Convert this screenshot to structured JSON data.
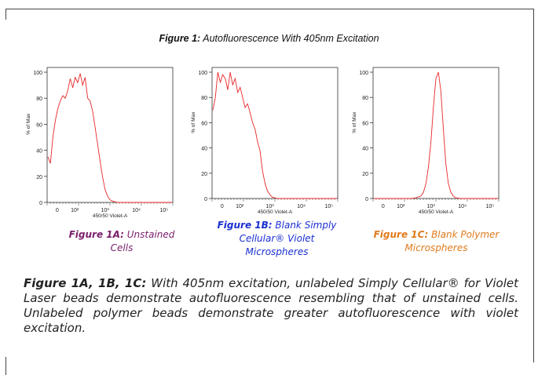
{
  "figure_title": {
    "label": "Figure 1:",
    "text": " Autofluorescence With 405nm Excitation"
  },
  "chart_data": [
    {
      "type": "area",
      "id": "1A",
      "xlabel": "450/50 Violet-A",
      "ylabel": "% of Max",
      "yticks": [
        "0",
        "20",
        "40",
        "60",
        "80",
        "100"
      ],
      "xticks": [
        "0",
        "10²",
        "10³",
        "10⁴",
        "10⁵"
      ],
      "ylim": [
        0,
        100
      ],
      "color": "#e8262a",
      "x": [
        0.0,
        0.02,
        0.04,
        0.06,
        0.08,
        0.1,
        0.12,
        0.14,
        0.16,
        0.18,
        0.2,
        0.22,
        0.24,
        0.26,
        0.28,
        0.3,
        0.32,
        0.34,
        0.36,
        0.38,
        0.4,
        0.42,
        0.44,
        0.46,
        0.48,
        0.5,
        0.52,
        0.54,
        0.56,
        0.6,
        0.7,
        0.8,
        0.9,
        1.0
      ],
      "values": [
        35,
        30,
        50,
        63,
        72,
        78,
        82,
        80,
        86,
        95,
        88,
        96,
        92,
        99,
        90,
        96,
        80,
        78,
        70,
        58,
        45,
        32,
        20,
        10,
        5,
        2,
        1,
        0.5,
        0,
        0,
        0,
        0,
        0,
        0
      ],
      "caption_label": "Figure 1A:",
      "caption_text": " Unstained Cells"
    },
    {
      "type": "area",
      "id": "1B",
      "xlabel": "450/50 Violet-A",
      "ylabel": "% of Max",
      "yticks": [
        "0",
        "20",
        "40",
        "60",
        "80",
        "100"
      ],
      "xticks": [
        "0",
        "10²",
        "10³",
        "10⁴",
        "10⁵"
      ],
      "ylim": [
        0,
        100
      ],
      "color": "#e8262a",
      "x": [
        0.0,
        0.02,
        0.04,
        0.06,
        0.08,
        0.1,
        0.12,
        0.14,
        0.16,
        0.18,
        0.2,
        0.22,
        0.24,
        0.26,
        0.28,
        0.3,
        0.32,
        0.34,
        0.36,
        0.38,
        0.4,
        0.42,
        0.44,
        0.46,
        0.48,
        0.5,
        0.52,
        0.54,
        0.56,
        0.6,
        0.7,
        0.8,
        0.9,
        1.0
      ],
      "values": [
        70,
        80,
        100,
        92,
        98,
        95,
        86,
        100,
        90,
        95,
        84,
        88,
        80,
        72,
        75,
        68,
        60,
        55,
        45,
        38,
        22,
        12,
        6,
        3,
        1,
        0.5,
        0,
        0,
        0,
        0,
        0,
        0,
        0,
        0
      ],
      "caption_label": "Figure 1B:",
      "caption_text": " Blank Simply Cellular® Violet Microspheres"
    },
    {
      "type": "area",
      "id": "1C",
      "xlabel": "450/50 Violet-A",
      "ylabel": "% of Max",
      "yticks": [
        "0",
        "20",
        "40",
        "60",
        "80",
        "100"
      ],
      "xticks": [
        "0",
        "10²",
        "10³",
        "10⁴",
        "10⁵"
      ],
      "ylim": [
        0,
        100
      ],
      "color": "#e8262a",
      "x": [
        0.0,
        0.2,
        0.3,
        0.34,
        0.38,
        0.4,
        0.42,
        0.44,
        0.46,
        0.48,
        0.5,
        0.52,
        0.54,
        0.56,
        0.58,
        0.6,
        0.62,
        0.64,
        0.66,
        0.7,
        0.8,
        1.0
      ],
      "values": [
        0,
        0,
        0,
        0.5,
        2,
        5,
        12,
        25,
        45,
        72,
        95,
        100,
        85,
        55,
        28,
        12,
        5,
        2,
        0.5,
        0,
        0,
        0
      ],
      "caption_label": "Figure 1C:",
      "caption_text": " Blank Polymer Microspheres"
    }
  ],
  "bottom_caption": {
    "label": "Figure 1A, 1B, 1C:",
    "text": "  With 405nm excitation, unlabeled Simply Cellular® for Violet Laser beads demonstrate autofluorescence resembling that of unstained cells.  Unlabeled polymer beads demonstrate greater autofluorescence with violet excitation."
  }
}
